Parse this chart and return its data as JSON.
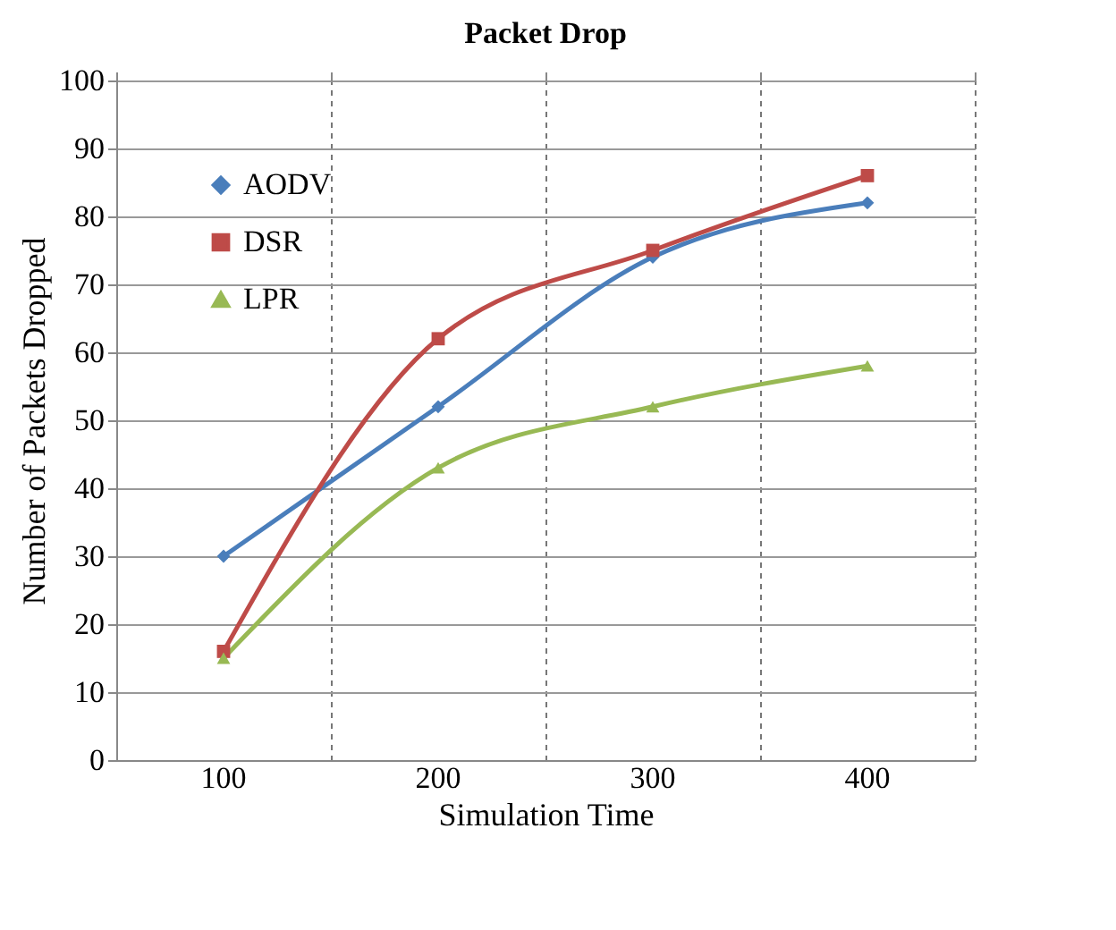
{
  "chart_data": {
    "type": "line",
    "title": "Packet Drop",
    "xlabel": "Simulation Time",
    "ylabel": "Number of Packets Dropped",
    "categories": [
      "100",
      "200",
      "300",
      "400"
    ],
    "series": [
      {
        "name": "AODV",
        "color": "#4a7ebb",
        "marker": "diamond",
        "values": [
          30,
          52,
          74,
          82
        ]
      },
      {
        "name": "DSR",
        "color": "#be4b48",
        "marker": "square",
        "values": [
          16,
          62,
          75,
          86
        ]
      },
      {
        "name": "LPR",
        "color": "#98b954",
        "marker": "triangle",
        "values": [
          15,
          43,
          52,
          58
        ]
      }
    ],
    "ylim": [
      0,
      100
    ],
    "yticks": [
      0,
      10,
      20,
      30,
      40,
      50,
      60,
      70,
      80,
      90,
      100
    ],
    "grid": true,
    "legend": "top left"
  }
}
